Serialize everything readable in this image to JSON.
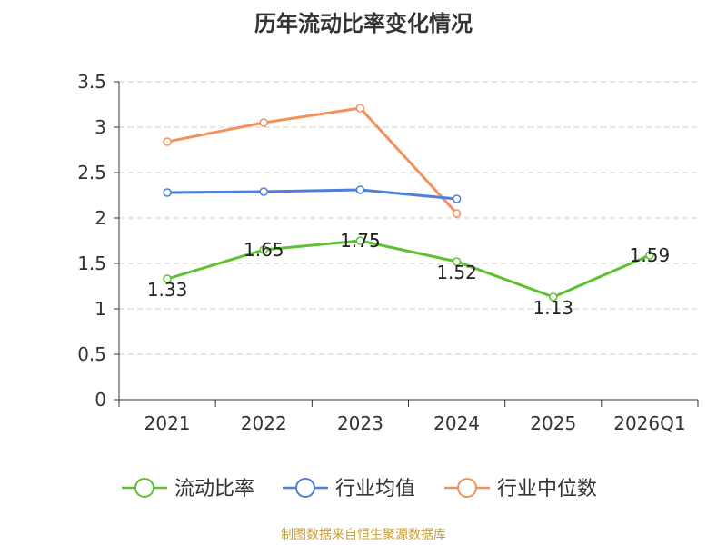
{
  "chart_data": {
    "type": "line",
    "title": "历年流动比率变化情况",
    "categories": [
      "2021",
      "2022",
      "2023",
      "2024",
      "2025",
      "2026Q1"
    ],
    "y_ticks": [
      "0",
      "0.5",
      "1",
      "1.5",
      "2",
      "2.5",
      "3",
      "3.5"
    ],
    "ylim": [
      0,
      3.5
    ],
    "grid": "horizontal dashed",
    "legend_position": "bottom-center",
    "series": [
      {
        "name": "流动比率",
        "color": "#5dc130",
        "values": [
          1.33,
          1.65,
          1.75,
          1.52,
          1.13,
          1.59
        ],
        "labels": [
          "1.33",
          "1.65",
          "1.75",
          "1.52",
          "1.13",
          "1.59"
        ]
      },
      {
        "name": "行业均值",
        "color": "#4e7fd9",
        "values": [
          2.28,
          2.29,
          2.31,
          2.21,
          null,
          null
        ]
      },
      {
        "name": "行业中位数",
        "color": "#f4915b",
        "values": [
          2.84,
          3.05,
          3.21,
          2.05,
          null,
          null
        ]
      }
    ]
  },
  "source": "制图数据来自恒生聚源数据库"
}
